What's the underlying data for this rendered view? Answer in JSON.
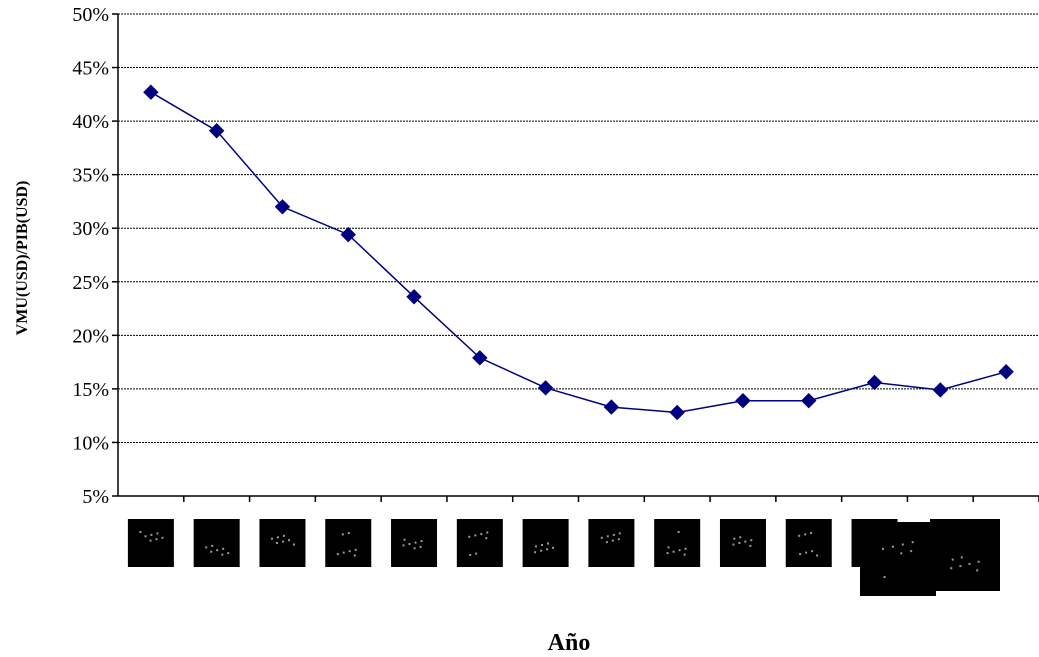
{
  "chart_data": {
    "type": "line",
    "title": "",
    "xlabel": "Año",
    "ylabel": "VMU(USD)/PIB(USD)",
    "ylim": [
      5,
      50
    ],
    "yticks": [
      "5%",
      "10%",
      "15%",
      "20%",
      "25%",
      "30%",
      "35%",
      "40%",
      "45%",
      "50%"
    ],
    "grid": true,
    "legend": "none",
    "series": [
      {
        "values": [
          42.7,
          39.1,
          32.0,
          29.4,
          23.6,
          17.9,
          15.1,
          13.3,
          12.8,
          13.9,
          13.9,
          15.6,
          14.9,
          16.6
        ]
      }
    ],
    "colors": {
      "line": "#000080",
      "marker": "#000080",
      "grid": "#000000"
    }
  }
}
